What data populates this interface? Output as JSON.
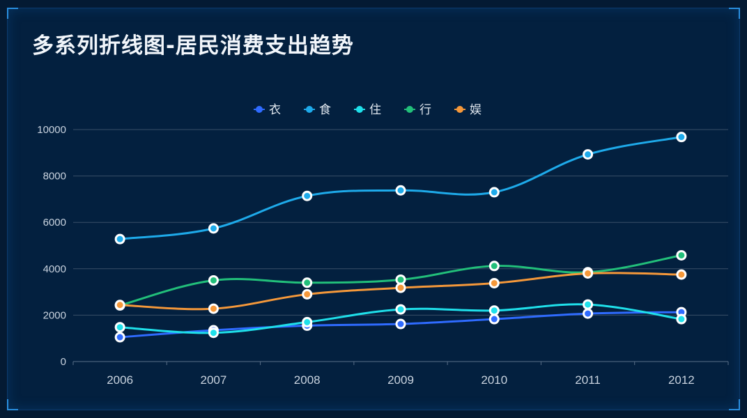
{
  "chart_data": {
    "type": "line",
    "title": "多系列折线图-居民消费支出趋势",
    "xlabel": "",
    "ylabel": "",
    "categories": [
      "2006",
      "2007",
      "2008",
      "2009",
      "2010",
      "2011",
      "2012"
    ],
    "ylim": [
      0,
      10000
    ],
    "yticks": [
      "0",
      "2000",
      "4000",
      "6000",
      "8000",
      "10000"
    ],
    "grid": true,
    "legend": "top-center",
    "smooth": true,
    "series": [
      {
        "name": "衣",
        "color": "#2f6bff",
        "values": [
          1050,
          1350,
          1550,
          1620,
          1830,
          2070,
          2130
        ]
      },
      {
        "name": "食",
        "color": "#1eaaea",
        "values": [
          5280,
          5740,
          7140,
          7380,
          7300,
          8930,
          9680
        ]
      },
      {
        "name": "住",
        "color": "#1fe0ea",
        "values": [
          1480,
          1240,
          1700,
          2250,
          2200,
          2460,
          1830
        ]
      },
      {
        "name": "行",
        "color": "#22bf7a",
        "values": [
          2420,
          3500,
          3400,
          3530,
          4120,
          3850,
          4580
        ]
      },
      {
        "name": "娱",
        "color": "#f5983a",
        "values": [
          2440,
          2280,
          2900,
          3180,
          3380,
          3800,
          3750
        ]
      }
    ]
  }
}
